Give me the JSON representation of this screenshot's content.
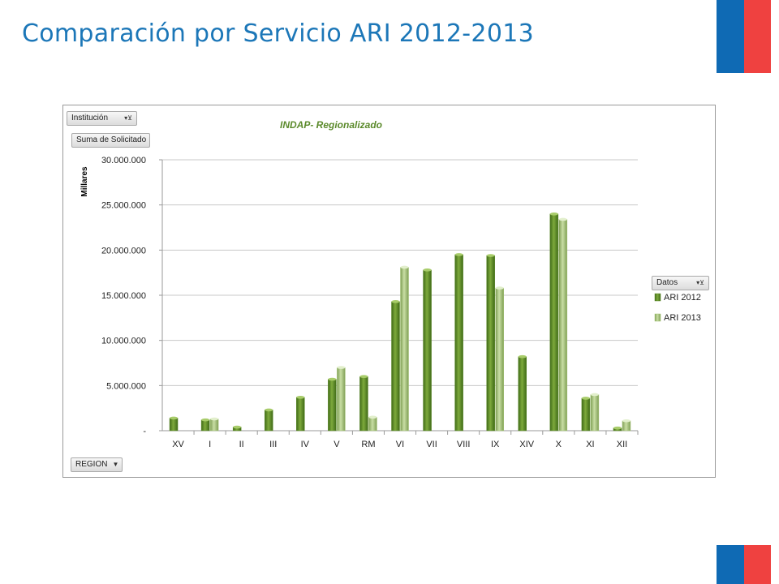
{
  "slide": {
    "title": "Comparación por Servicio ARI 2012-2013"
  },
  "colors": {
    "title": "#1c77b8",
    "flag_blue": "#0f6ab4",
    "flag_red": "#ef4140",
    "ari2012": "#5c8a2a",
    "ari2013": "#a4c474"
  },
  "pivot": {
    "institucion_label": "Institución",
    "suma_label": "Suma de Solicitado",
    "region_label": "REGION",
    "datos_label": "Datos",
    "filter_icon": "funnel-arrow-icon",
    "dropdown_icon": "chevron-down-icon"
  },
  "chart_data": {
    "type": "bar",
    "title": "INDAP- Regionalizado",
    "ylabel": "Millares",
    "xlabel": "",
    "categories": [
      "XV",
      "I",
      "II",
      "III",
      "IV",
      "V",
      "RM",
      "VI",
      "VII",
      "VIII",
      "IX",
      "XIV",
      "X",
      "XI",
      "XII"
    ],
    "series": [
      {
        "name": "ARI 2012",
        "values": [
          1400000,
          1200000,
          400000,
          2300000,
          3700000,
          5700000,
          6000000,
          14300000,
          17800000,
          19500000,
          19400000,
          8200000,
          24000000,
          3600000,
          300000
        ]
      },
      {
        "name": "ARI 2013",
        "values": [
          null,
          1300000,
          null,
          null,
          null,
          7000000,
          1500000,
          18100000,
          null,
          null,
          15800000,
          null,
          23400000,
          4000000,
          1100000
        ]
      }
    ],
    "ylim": [
      0,
      30000000
    ],
    "yticks": [
      0,
      5000000,
      10000000,
      15000000,
      20000000,
      25000000,
      30000000
    ],
    "ytick_labels": [
      "-",
      "5.000.000",
      "10.000.000",
      "15.000.000",
      "20.000.000",
      "25.000.000",
      "30.000.000"
    ],
    "grid": true,
    "legend_position": "right"
  }
}
